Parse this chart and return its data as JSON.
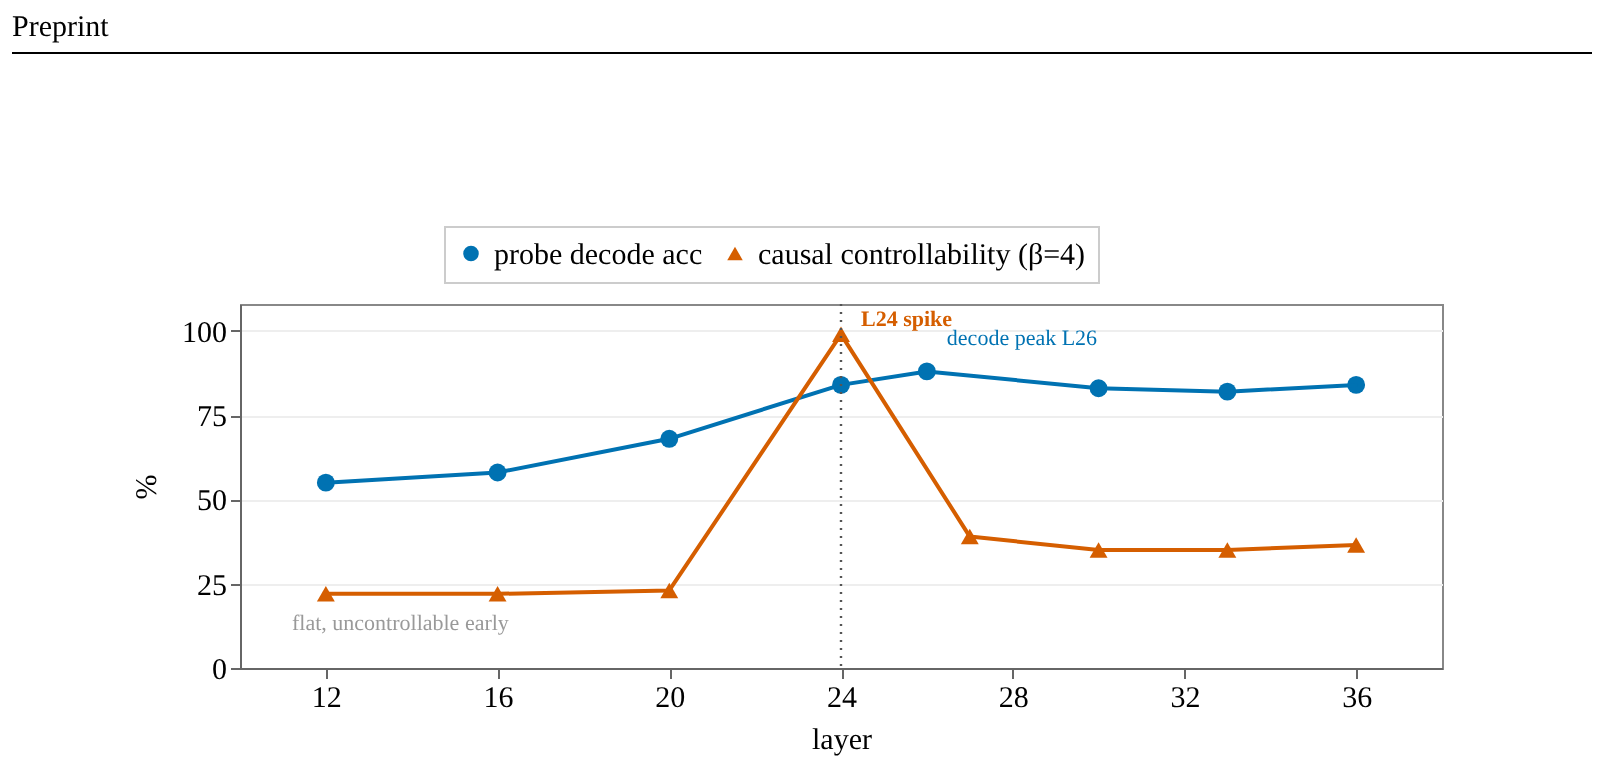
{
  "chart_data": {
    "type": "line",
    "xlabel": "layer",
    "ylabel": "%",
    "xlim": [
      10,
      38
    ],
    "xticks": [
      12,
      16,
      20,
      24,
      28,
      32,
      36
    ],
    "ylim": [
      0,
      108
    ],
    "yticks": [
      0,
      25,
      50,
      75,
      100
    ],
    "grid": "y",
    "legend": "top",
    "series": [
      {
        "name": "probe decode acc",
        "color": "#0072b2",
        "marker": "circle",
        "x": [
          12,
          16,
          20,
          24,
          26,
          30,
          33,
          36
        ],
        "values": [
          55,
          58,
          68,
          84,
          88,
          83,
          82,
          84
        ]
      },
      {
        "name": "causal controllability (β=4)",
        "color": "#d55e00",
        "marker": "triangle",
        "x": [
          12,
          16,
          20,
          24,
          27,
          30,
          33,
          36
        ],
        "values": [
          22,
          22,
          23,
          99,
          39,
          35,
          35,
          36.5
        ]
      }
    ],
    "ref_lines": [
      {
        "axis": "x",
        "value": 24,
        "color": "#555555",
        "line_style": "dotted"
      }
    ],
    "annotations": [
      {
        "text": "L24 spike",
        "x": 24,
        "y": 99
      },
      {
        "text": "decode peak L26",
        "x": 26,
        "y": 88
      },
      "flat, uncontrollable early",
      "Preprint"
    ]
  }
}
